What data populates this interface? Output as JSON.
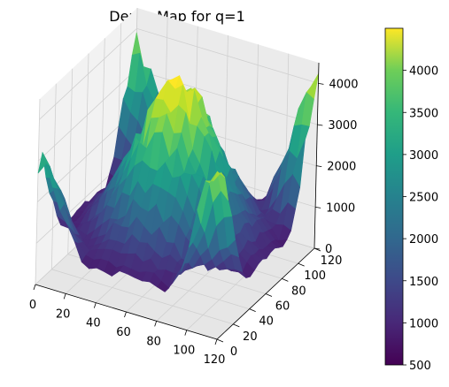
{
  "chart_data": {
    "type": "surface",
    "title": "Depth Map for q=1",
    "colormap": "viridis",
    "x": {
      "label": "",
      "range": [
        0,
        120
      ],
      "ticks": [
        0,
        20,
        40,
        60,
        80,
        100,
        120
      ]
    },
    "y": {
      "label": "",
      "range": [
        0,
        120
      ],
      "ticks": [
        0,
        20,
        40,
        60,
        80,
        100,
        120
      ]
    },
    "z": {
      "label": "",
      "range": [
        0,
        4500
      ],
      "ticks": [
        0,
        1000,
        2000,
        3000,
        4000
      ]
    },
    "colorbar": {
      "range": [
        500,
        4500
      ],
      "ticks": [
        500,
        1000,
        1500,
        2000,
        2500,
        3000,
        3500,
        4000
      ]
    },
    "features": [
      {
        "name": "central dome",
        "x": 60,
        "y": 60,
        "peak": 4300
      },
      {
        "name": "corner peak",
        "x": 0,
        "y": 0,
        "peak": 3000
      },
      {
        "name": "corner peak",
        "x": 120,
        "y": 0,
        "peak": 4200
      },
      {
        "name": "corner peak",
        "x": 120,
        "y": 120,
        "peak": 4100
      },
      {
        "name": "corner peak",
        "x": 0,
        "y": 120,
        "peak": 3600
      },
      {
        "name": "trough floor",
        "value": 600
      }
    ],
    "grid": true,
    "colors": {
      "pane": "#f2f2f2",
      "grid": "#d0d0d0",
      "axis": "#000000"
    }
  }
}
